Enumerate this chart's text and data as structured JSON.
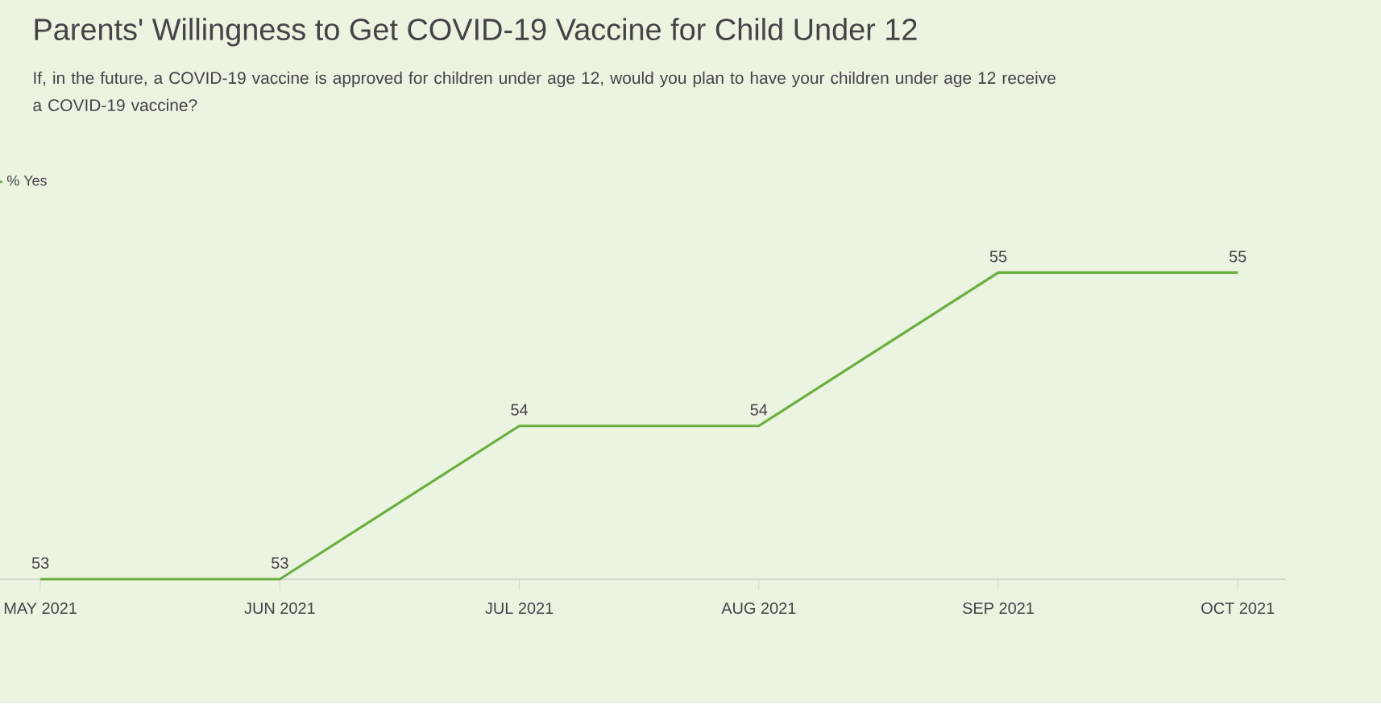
{
  "chart_data": {
    "type": "line",
    "title": "Parents' Willingness to Get COVID-19 Vaccine for Child Under 12",
    "subtitle": "If, in the future, a COVID-19 vaccine is approved for children under age 12, would you plan to have your children under age 12 receive a COVID-19 vaccine?",
    "categories": [
      "MAY 2021",
      "JUN 2021",
      "JUL 2021",
      "AUG 2021",
      "SEP 2021",
      "OCT 2021"
    ],
    "series": [
      {
        "name": "% Yes",
        "color": "#6aae3f",
        "values": [
          53,
          53,
          54,
          54,
          55,
          55
        ]
      }
    ],
    "legend": "top left",
    "data_labels": true
  }
}
